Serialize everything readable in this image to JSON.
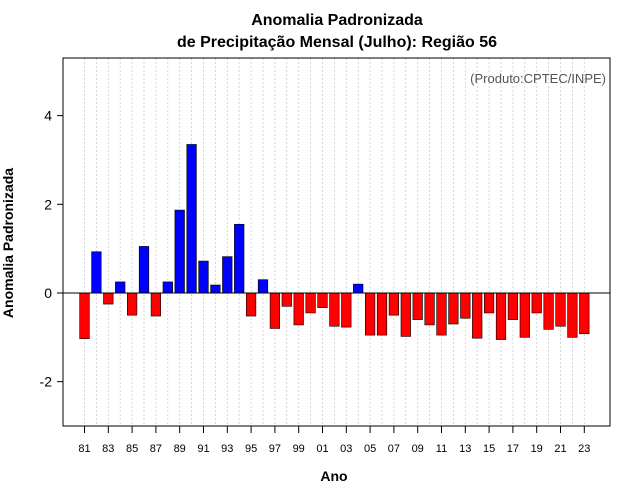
{
  "chart_data": {
    "type": "bar",
    "title_line1": "Anomalia Padronizada",
    "title_line2": "de Precipitação Mensal (Julho): Região 56",
    "xlabel": "Ano",
    "ylabel": "Anomalia Padronizada",
    "source_note": "(Produto:CPTEC/INPE)",
    "ylim": [
      -3.0,
      5.3
    ],
    "yticks": [
      "-2",
      "0",
      "2",
      "4"
    ],
    "ytick_values": [
      -2,
      0,
      2,
      4
    ],
    "grid": true,
    "colors": {
      "positive": "#0000ff",
      "negative": "#ff0000",
      "grid": "#cccccc",
      "axis": "#000000"
    },
    "categories": [
      "81",
      "82",
      "83",
      "84",
      "85",
      "86",
      "87",
      "88",
      "89",
      "90",
      "91",
      "92",
      "93",
      "94",
      "95",
      "96",
      "97",
      "98",
      "99",
      "00",
      "01",
      "02",
      "03",
      "04",
      "05",
      "06",
      "07",
      "08",
      "09",
      "10",
      "11",
      "12",
      "13",
      "14",
      "15",
      "16",
      "17",
      "18",
      "19",
      "20",
      "21",
      "22",
      "23"
    ],
    "xtick_labels": [
      "81",
      "83",
      "85",
      "87",
      "89",
      "91",
      "93",
      "95",
      "97",
      "99",
      "01",
      "03",
      "05",
      "07",
      "09",
      "11",
      "13",
      "15",
      "17",
      "19",
      "21",
      "23"
    ],
    "values": [
      -1.03,
      0.93,
      -0.25,
      0.25,
      -0.5,
      1.05,
      -0.52,
      0.25,
      1.87,
      3.35,
      0.72,
      0.18,
      0.82,
      1.55,
      -0.52,
      0.3,
      -0.8,
      -0.3,
      -0.72,
      -0.45,
      -0.33,
      -0.75,
      -0.77,
      0.2,
      -0.95,
      -0.95,
      -0.5,
      -0.98,
      -0.6,
      -0.72,
      -0.95,
      -0.7,
      -0.57,
      -1.02,
      -0.45,
      -1.05,
      -0.6,
      -1.0,
      -0.45,
      -0.82,
      -0.75,
      -1.0,
      -0.92
    ]
  }
}
